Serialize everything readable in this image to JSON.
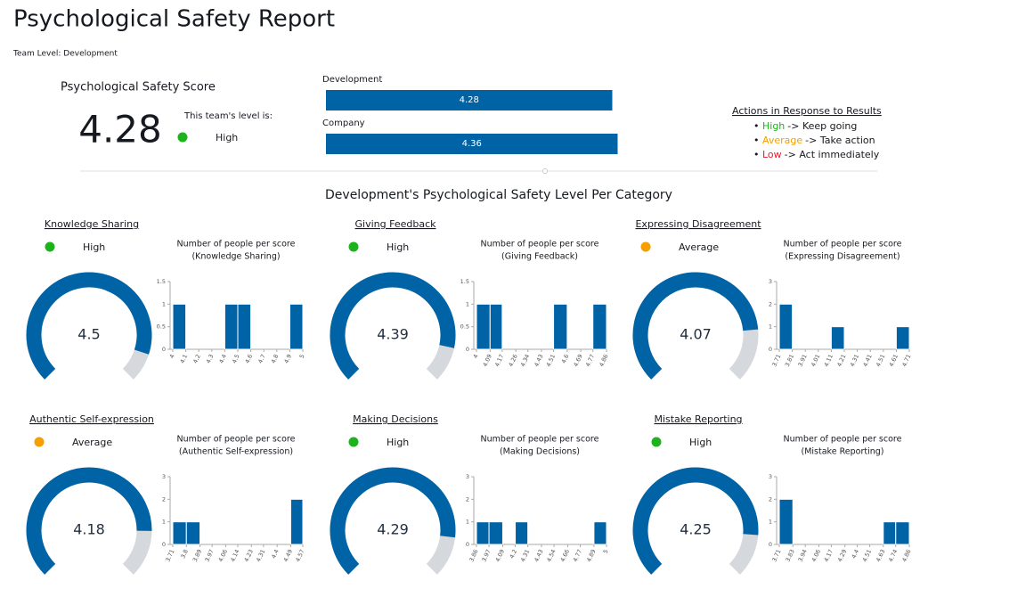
{
  "header": {
    "title": "Psychological Safety Report",
    "team_level": "Team Level: Development"
  },
  "score": {
    "title": "Psychological Safety Score",
    "value": 4.28,
    "level_prompt": "This team's level is:",
    "level": "High",
    "level_color": "#1db31d"
  },
  "comparison": {
    "type": "bar",
    "categories": [
      "Development",
      "Company"
    ],
    "values": [
      4.28,
      4.36
    ],
    "color": "#0063a5",
    "xlim": [
      0,
      4.5
    ]
  },
  "actions": {
    "title": "Actions in Response to Results",
    "items": [
      {
        "level": "High",
        "color": "#1db31d",
        "text": "-> Keep going"
      },
      {
        "level": "Average",
        "color": "#f5a000",
        "text": "-> Take action"
      },
      {
        "level": "Low",
        "color": "#e8192c",
        "text": "-> Act immediately"
      }
    ]
  },
  "section_title": "Development's Psychological Safety Level Per Category",
  "gauge_color": "#0063a5",
  "categories": [
    {
      "name": "Knowledge Sharing",
      "level": "High",
      "level_color": "#1db31d",
      "score": 4.5,
      "gauge_range": [
        0,
        5
      ],
      "histogram": {
        "type": "histogram",
        "title": "Number of people per score",
        "subtitle": "(Knowledge Sharing)",
        "color": "#0063a5",
        "bins": [
          4,
          4.1,
          4.2,
          4.3,
          4.4,
          4.5,
          4.6,
          4.7,
          4.8,
          4.9,
          5
        ],
        "counts": [
          1,
          0,
          0,
          0,
          1,
          1,
          0,
          0,
          0,
          1
        ],
        "ylim": [
          0,
          1.5
        ],
        "yticks": [
          0,
          0.5,
          1,
          1.5
        ]
      }
    },
    {
      "name": "Giving Feedback",
      "level": "High",
      "level_color": "#1db31d",
      "score": 4.39,
      "gauge_range": [
        0,
        5
      ],
      "histogram": {
        "type": "histogram",
        "title": "Number of people per score",
        "subtitle": "(Giving Feedback)",
        "color": "#0063a5",
        "bins": [
          4,
          4.09,
          4.17,
          4.26,
          4.34,
          4.43,
          4.51,
          4.6,
          4.69,
          4.77,
          4.86
        ],
        "counts": [
          1,
          1,
          0,
          0,
          0,
          0,
          1,
          0,
          0,
          1
        ],
        "ylim": [
          0,
          1.5
        ],
        "yticks": [
          0,
          0.5,
          1,
          1.5
        ]
      }
    },
    {
      "name": "Expressing Disagreement",
      "level": "Average",
      "level_color": "#f5a000",
      "score": 4.07,
      "gauge_range": [
        0,
        5
      ],
      "histogram": {
        "type": "histogram",
        "title": "Number of people per score",
        "subtitle": "(Expressing Disagreement)",
        "color": "#0063a5",
        "bins": [
          3.71,
          3.81,
          3.91,
          4.01,
          4.11,
          4.21,
          4.31,
          4.41,
          4.51,
          4.61,
          4.71
        ],
        "counts": [
          2,
          0,
          0,
          0,
          1,
          0,
          0,
          0,
          0,
          1
        ],
        "ylim": [
          0,
          3
        ],
        "yticks": [
          0,
          1,
          2,
          3
        ]
      }
    },
    {
      "name": "Authentic Self-expression",
      "level": "Average",
      "level_color": "#f5a000",
      "score": 4.18,
      "gauge_range": [
        0,
        5
      ],
      "histogram": {
        "type": "histogram",
        "title": "Number of people per score",
        "subtitle": "(Authentic Self-expression)",
        "color": "#0063a5",
        "bins": [
          3.71,
          3.8,
          3.89,
          3.97,
          4.06,
          4.14,
          4.23,
          4.31,
          4.4,
          4.49,
          4.57
        ],
        "counts": [
          1,
          1,
          0,
          0,
          0,
          0,
          0,
          0,
          0,
          2
        ],
        "ylim": [
          0,
          3
        ],
        "yticks": [
          0,
          1,
          2,
          3
        ]
      }
    },
    {
      "name": "Making Decisions",
      "level": "High",
      "level_color": "#1db31d",
      "score": 4.29,
      "gauge_range": [
        0,
        5
      ],
      "histogram": {
        "type": "histogram",
        "title": "Number of people per score",
        "subtitle": "(Making Decisions)",
        "color": "#0063a5",
        "bins": [
          3.86,
          3.97,
          4.09,
          4.2,
          4.31,
          4.43,
          4.54,
          4.66,
          4.77,
          4.89,
          5
        ],
        "counts": [
          1,
          1,
          0,
          1,
          0,
          0,
          0,
          0,
          0,
          1
        ],
        "ylim": [
          0,
          3
        ],
        "yticks": [
          0,
          1,
          2,
          3
        ]
      }
    },
    {
      "name": "Mistake Reporting",
      "level": "High",
      "level_color": "#1db31d",
      "score": 4.25,
      "gauge_range": [
        0,
        5
      ],
      "histogram": {
        "type": "histogram",
        "title": "Number of people per score",
        "subtitle": "(Mistake Reporting)",
        "color": "#0063a5",
        "bins": [
          3.71,
          3.83,
          3.94,
          4.06,
          4.17,
          4.29,
          4.4,
          4.51,
          4.63,
          4.74,
          4.86
        ],
        "counts": [
          2,
          0,
          0,
          0,
          0,
          0,
          0,
          0,
          1,
          1
        ],
        "ylim": [
          0,
          3
        ],
        "yticks": [
          0,
          1,
          2,
          3
        ]
      }
    }
  ]
}
